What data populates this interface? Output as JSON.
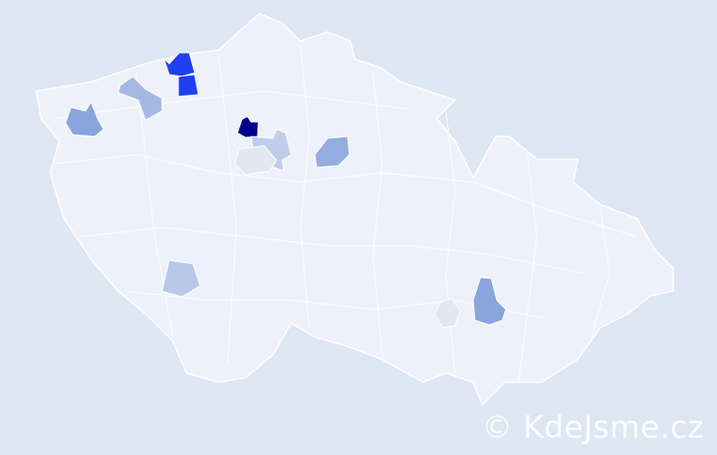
{
  "map": {
    "country_fill": "#eef1f9",
    "border_color": "#ffffff",
    "background": "#dde6f2",
    "highlighted_regions": [
      {
        "color": "#00008b"
      },
      {
        "color": "#2040f0"
      },
      {
        "color": "#2040f0"
      },
      {
        "color": "#8aa4dc"
      },
      {
        "color": "#8aa4dc"
      },
      {
        "color": "#94acdf"
      },
      {
        "color": "#a5b8e3"
      },
      {
        "color": "#b8c8e8"
      },
      {
        "color": "#bfcde9"
      },
      {
        "color": "#e4e7ee"
      },
      {
        "color": "#e4e7ee"
      }
    ]
  },
  "watermark": {
    "text": "© KdeJsme.cz"
  }
}
